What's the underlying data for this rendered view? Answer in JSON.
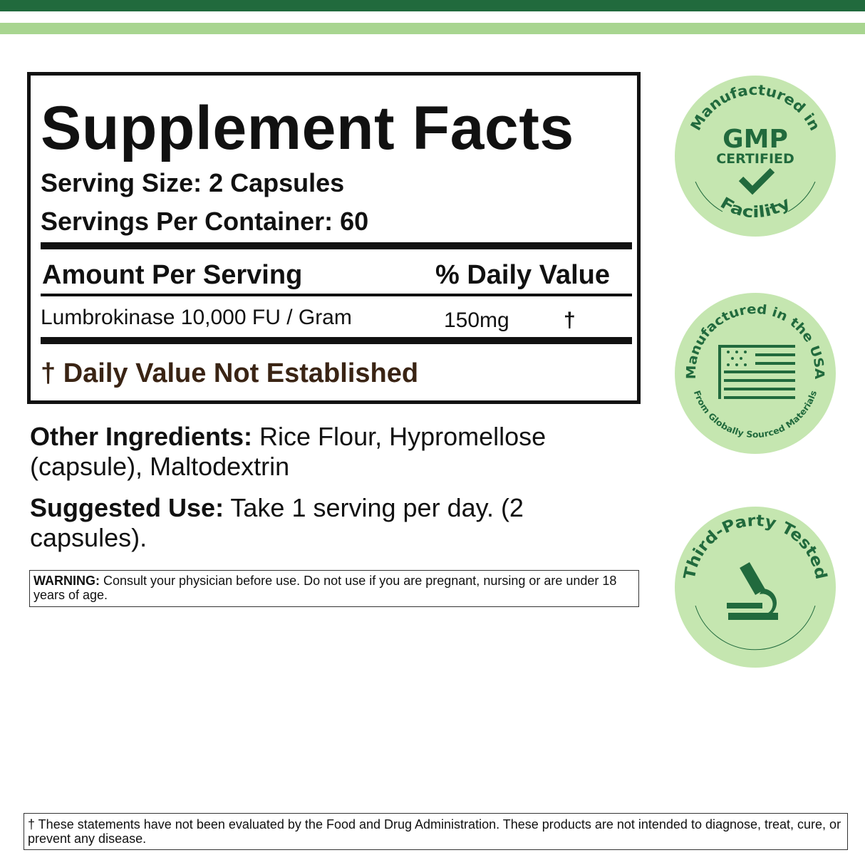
{
  "colors": {
    "dark_green": "#216a3d",
    "light_green": "#a8d590",
    "badge_bg": "#c5e6b0",
    "brown": "#3a2414"
  },
  "facts": {
    "title": "Supplement Facts",
    "serving_size": "Serving Size: 2 Capsules",
    "servings_per_container": "Servings Per Container:  60",
    "amount_header": "Amount Per Serving",
    "dv_header": "% Daily Value",
    "ingredients": [
      {
        "name": "Lumbrokinase 10,000 FU / Gram",
        "amount": "150mg",
        "dv": "†"
      }
    ],
    "dv_note": "† Daily Value Not Established"
  },
  "other_ingredients": {
    "label": "Other Ingredients:",
    "text": " Rice Flour, Hypromellose (capsule), Maltodextrin"
  },
  "suggested_use": {
    "label": "Suggested Use:",
    "text": " Take 1 serving per day. (2 capsules)."
  },
  "warning": {
    "label": "WARNING:",
    "text": " Consult your physician before use. Do not use if you are pregnant, nursing or are under 18 years of age."
  },
  "disclaimer": "† These statements have not been evaluated by the Food and Drug Administration. These products are not intended to diagnose, treat, cure, or prevent any disease.",
  "badges": [
    {
      "top": "Manufactured in",
      "line1": "GMP",
      "line2": "CERTIFIED",
      "bottom": "Facility",
      "icon": "checkmark-icon"
    },
    {
      "top": "Manufactured in the USA",
      "bottom": "From Globally Sourced Materials",
      "icon": "us-flag-icon"
    },
    {
      "top": "Third-Party Tested",
      "icon": "microscope-icon"
    }
  ]
}
